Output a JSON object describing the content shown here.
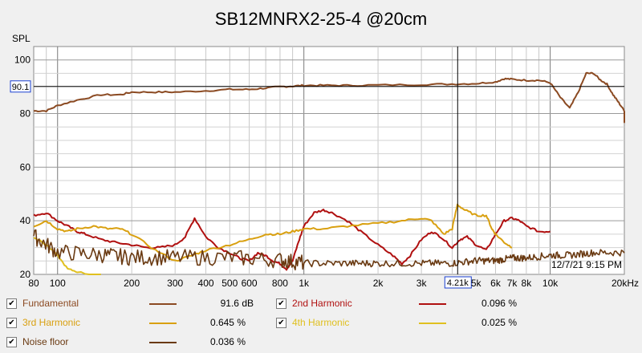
{
  "chart_data": {
    "type": "line",
    "title": "SB12MNRX2-25-4 @20cm",
    "ylabel": "SPL",
    "xlabel": "",
    "x_scale": "log",
    "xlim": [
      80,
      20000
    ],
    "ylim": [
      20,
      105
    ],
    "grid": true,
    "x_tick_labels": [
      {
        "value": 80,
        "label": "80"
      },
      {
        "value": 100,
        "label": "100"
      },
      {
        "value": 200,
        "label": "200"
      },
      {
        "value": 300,
        "label": "300"
      },
      {
        "value": 400,
        "label": "400"
      },
      {
        "value": 500,
        "label": "500"
      },
      {
        "value": 600,
        "label": "600"
      },
      {
        "value": 800,
        "label": "800"
      },
      {
        "value": 1000,
        "label": "1k"
      },
      {
        "value": 2000,
        "label": "2k"
      },
      {
        "value": 3000,
        "label": "3k"
      },
      {
        "value": 5000,
        "label": "5k"
      },
      {
        "value": 6000,
        "label": "6k"
      },
      {
        "value": 7000,
        "label": "7k"
      },
      {
        "value": 8000,
        "label": "8k"
      },
      {
        "value": 10000,
        "label": "10k"
      },
      {
        "value": 20000,
        "label": "20kHz"
      }
    ],
    "y_tick_labels": [
      {
        "value": 20,
        "label": "20"
      },
      {
        "value": 40,
        "label": "40"
      },
      {
        "value": 60,
        "label": "60"
      },
      {
        "value": 80,
        "label": "80"
      },
      {
        "value": 100,
        "label": "100"
      }
    ],
    "cursor": {
      "x": 4210,
      "x_label": "4.21k",
      "y": 90.1,
      "y_label": "90.1"
    },
    "timestamp": "12/7/21 9:15 PM",
    "series": [
      {
        "name": "Fundamental",
        "color": "#8b4a22",
        "value_label": "91.6 dB",
        "points": [
          [
            80,
            81
          ],
          [
            90,
            81
          ],
          [
            100,
            83
          ],
          [
            120,
            85
          ],
          [
            150,
            87
          ],
          [
            180,
            87
          ],
          [
            200,
            88
          ],
          [
            250,
            88
          ],
          [
            300,
            88
          ],
          [
            400,
            88.5
          ],
          [
            500,
            89
          ],
          [
            600,
            89
          ],
          [
            700,
            89.5
          ],
          [
            800,
            90
          ],
          [
            900,
            90.2
          ],
          [
            1000,
            90.5
          ],
          [
            1200,
            90.5
          ],
          [
            1500,
            90.5
          ],
          [
            2000,
            90.6
          ],
          [
            3000,
            90.8
          ],
          [
            4000,
            91
          ],
          [
            5000,
            91.2
          ],
          [
            6000,
            91.8
          ],
          [
            6500,
            93
          ],
          [
            7000,
            92.8
          ],
          [
            8000,
            92.4
          ],
          [
            9000,
            92.4
          ],
          [
            10000,
            91.5
          ],
          [
            11000,
            86
          ],
          [
            12000,
            82
          ],
          [
            13000,
            88
          ],
          [
            14000,
            95
          ],
          [
            15000,
            95
          ],
          [
            16000,
            92.5
          ],
          [
            17000,
            91
          ],
          [
            18000,
            87
          ],
          [
            19000,
            84
          ],
          [
            20000,
            81
          ],
          [
            21000,
            77
          ],
          [
            22000,
            77
          ]
        ]
      },
      {
        "name": "2nd Harmonic",
        "color": "#b01010",
        "value_label": "0.096 %",
        "points": [
          [
            80,
            42
          ],
          [
            90,
            43
          ],
          [
            100,
            40
          ],
          [
            110,
            38
          ],
          [
            120,
            36
          ],
          [
            130,
            35
          ],
          [
            150,
            33
          ],
          [
            170,
            32
          ],
          [
            200,
            31
          ],
          [
            230,
            30
          ],
          [
            260,
            30
          ],
          [
            300,
            31
          ],
          [
            330,
            34
          ],
          [
            360,
            41
          ],
          [
            400,
            34
          ],
          [
            450,
            30
          ],
          [
            500,
            28
          ],
          [
            550,
            26
          ],
          [
            600,
            25
          ],
          [
            650,
            28
          ],
          [
            700,
            27
          ],
          [
            750,
            25
          ],
          [
            800,
            24
          ],
          [
            850,
            22
          ],
          [
            900,
            25
          ],
          [
            950,
            32
          ],
          [
            1000,
            38
          ],
          [
            1100,
            43
          ],
          [
            1200,
            44
          ],
          [
            1300,
            43
          ],
          [
            1500,
            40
          ],
          [
            1700,
            36
          ],
          [
            2000,
            31
          ],
          [
            2300,
            27
          ],
          [
            2500,
            24
          ],
          [
            2700,
            27
          ],
          [
            3000,
            33
          ],
          [
            3300,
            36
          ],
          [
            3600,
            34
          ],
          [
            4000,
            30
          ],
          [
            4300,
            33
          ],
          [
            4600,
            34
          ],
          [
            5000,
            31
          ],
          [
            5500,
            29
          ],
          [
            6000,
            35
          ],
          [
            6500,
            40
          ],
          [
            7000,
            41
          ],
          [
            7500,
            40
          ],
          [
            8000,
            38
          ],
          [
            9000,
            36
          ],
          [
            10000,
            36
          ]
        ]
      },
      {
        "name": "3rd Harmonic",
        "color": "#d9a010",
        "value_label": "0.645 %",
        "points": [
          [
            80,
            38
          ],
          [
            90,
            40
          ],
          [
            100,
            37
          ],
          [
            110,
            36
          ],
          [
            120,
            37
          ],
          [
            140,
            38
          ],
          [
            160,
            37
          ],
          [
            180,
            37
          ],
          [
            200,
            35
          ],
          [
            250,
            29
          ],
          [
            300,
            25
          ],
          [
            350,
            27
          ],
          [
            400,
            29
          ],
          [
            500,
            31
          ],
          [
            600,
            33
          ],
          [
            700,
            35
          ],
          [
            800,
            35
          ],
          [
            900,
            36
          ],
          [
            1000,
            37
          ],
          [
            1200,
            37
          ],
          [
            1500,
            38
          ],
          [
            2000,
            39
          ],
          [
            2500,
            40
          ],
          [
            3000,
            41
          ],
          [
            3300,
            40
          ],
          [
            3700,
            35
          ],
          [
            4000,
            37
          ],
          [
            4200,
            46
          ],
          [
            4500,
            44
          ],
          [
            5000,
            42
          ],
          [
            5500,
            42
          ],
          [
            5800,
            37
          ],
          [
            6000,
            35
          ],
          [
            6500,
            32
          ],
          [
            7000,
            30
          ]
        ]
      },
      {
        "name": "4th Harmonic",
        "color": "#e0c020",
        "value_label": "0.025 %",
        "points": [
          [
            80,
            34
          ],
          [
            90,
            31
          ],
          [
            100,
            27
          ],
          [
            110,
            22
          ],
          [
            120,
            21
          ],
          [
            150,
            19
          ]
        ]
      },
      {
        "name": "Noise floor",
        "color": "#6a3a12",
        "value_label": "0.036 %",
        "points": [
          [
            80,
            34
          ],
          [
            100,
            28
          ],
          [
            150,
            27
          ],
          [
            200,
            26
          ],
          [
            300,
            26
          ],
          [
            500,
            26
          ],
          [
            800,
            25
          ],
          [
            1000,
            24
          ],
          [
            1500,
            24
          ],
          [
            2000,
            24
          ],
          [
            3000,
            24
          ],
          [
            4000,
            24
          ],
          [
            5000,
            25
          ],
          [
            6000,
            25
          ],
          [
            7000,
            26
          ],
          [
            8000,
            26
          ],
          [
            10000,
            27
          ],
          [
            12000,
            27
          ],
          [
            15000,
            28
          ],
          [
            20000,
            28
          ]
        ]
      }
    ]
  }
}
